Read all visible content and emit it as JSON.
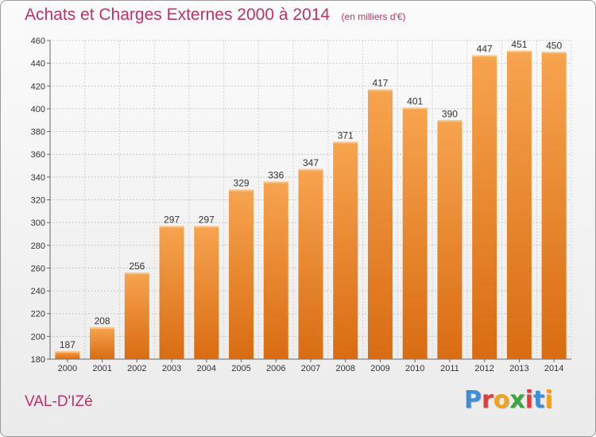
{
  "chart_data": {
    "type": "bar",
    "title": "Achats et Charges Externes 2000 à 2014",
    "subtitle": "(en milliers d'€)",
    "categories": [
      "2000",
      "2001",
      "2002",
      "2003",
      "2004",
      "2005",
      "2006",
      "2007",
      "2008",
      "2009",
      "2010",
      "2011",
      "2012",
      "2013",
      "2014"
    ],
    "values": [
      187,
      208,
      256,
      297,
      297,
      329,
      336,
      347,
      371,
      417,
      401,
      390,
      447,
      451,
      450
    ],
    "ylim": [
      180,
      460
    ],
    "yticks": [
      180,
      200,
      220,
      240,
      260,
      280,
      300,
      320,
      340,
      360,
      380,
      400,
      420,
      440,
      460
    ],
    "xlabel": "",
    "ylabel": "",
    "grid": true,
    "bar_color": "#f0902e"
  },
  "place": "VAL-D'IZé",
  "brand": {
    "letters": [
      "P",
      "r",
      "o",
      "x",
      "i",
      "t",
      "i"
    ],
    "colors": [
      "#3a8fd8",
      "#e23b3b",
      "#f2a21b",
      "#3aa83a",
      "#e23b3b",
      "#3a8fd8",
      "#f2a21b"
    ]
  }
}
